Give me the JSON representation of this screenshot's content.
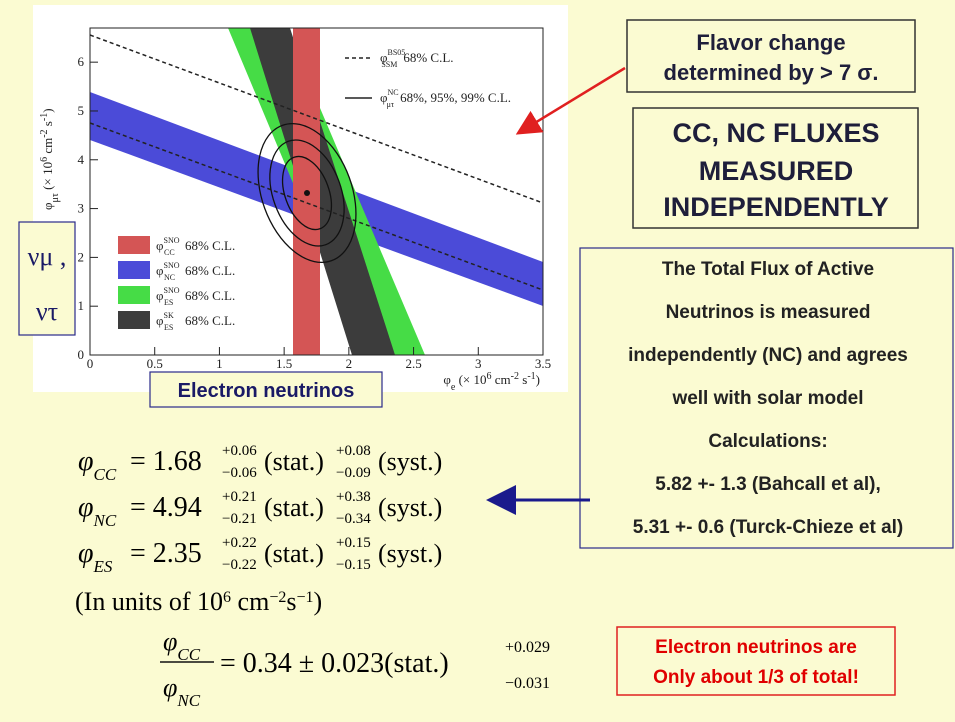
{
  "plot": {
    "xlim": [
      0,
      3.5
    ],
    "ylim": [
      0,
      6.7
    ],
    "xticks": [
      0,
      0.5,
      1,
      1.5,
      2,
      2.5,
      3,
      3.5
    ],
    "yticks": [
      0,
      1,
      2,
      3,
      4,
      5,
      6
    ],
    "x_label_parts": [
      "φ",
      "e",
      " (× 10",
      "6",
      " cm",
      "-2",
      " s",
      "-1",
      ")"
    ],
    "y_label_parts": [
      "φ",
      "μτ",
      " (× 10",
      "6",
      " cm",
      "-2",
      " s",
      "-1",
      ")"
    ],
    "legend_lines": [
      {
        "symbol": "φ",
        "sup": "BS05",
        "sub": "SSM",
        "text": "68% C.L."
      },
      {
        "symbol": "φ",
        "sup": "NC",
        "sub": "μτ",
        "text": "68%, 95%, 99% C.L."
      }
    ],
    "legend_bands": [
      {
        "symbol": "φ",
        "sup": "SNO",
        "sub": "CC",
        "text": "68% C.L.",
        "color": "#d45555"
      },
      {
        "symbol": "φ",
        "sup": "SNO",
        "sub": "NC",
        "text": "68% C.L.",
        "color": "#4b4bd8"
      },
      {
        "symbol": "φ",
        "sup": "SNO",
        "sub": "ES",
        "text": "68% C.L.",
        "color": "#46dc46"
      },
      {
        "symbol": "φ",
        "sup": "SK",
        "sub": "ES",
        "text": "68% C.L.",
        "color": "#3c3c3c"
      }
    ]
  },
  "flavor_box": [
    "Flavor change",
    "determined by > 7 σ."
  ],
  "fluxes_box": [
    "CC, NC FLUXES",
    "MEASURED",
    "INDEPENDENTLY"
  ],
  "nu_labels": [
    "νμ ,",
    "ντ"
  ],
  "electron_label": "Electron neutrinos",
  "total_flux_box": [
    "The Total Flux of Active",
    "Neutrinos is measured",
    "independently (NC) and agrees",
    "well with solar model",
    "Calculations:",
    "5.82 +- 1.3 (Bahcall et al),",
    "5.31 +- 0.6 (Turck-Chieze et al)"
  ],
  "equations": [
    {
      "symbol": "φ",
      "sub": "CC",
      "value": "= 1.68",
      "stat_up": "+0.06",
      "stat_down": "−0.06",
      "stat": "(stat.)",
      "syst_up": "+0.08",
      "syst_down": "−0.09",
      "syst": "(syst.)"
    },
    {
      "symbol": "φ",
      "sub": "NC",
      "value": "= 4.94",
      "stat_up": "+0.21",
      "stat_down": "−0.21",
      "stat": "(stat.)",
      "syst_up": "+0.38",
      "syst_down": "−0.34",
      "syst": "(syst.)"
    },
    {
      "symbol": "φ",
      "sub": "ES",
      "value": "= 2.35",
      "stat_up": "+0.22",
      "stat_down": "−0.22",
      "stat": "(stat.)",
      "syst_up": "+0.15",
      "syst_down": "−0.15",
      "syst": "(syst.)"
    }
  ],
  "units_parts": [
    "(In units of 10",
    "6",
    " cm",
    "−2",
    "s",
    "−1",
    ")"
  ],
  "ratio": {
    "num_symbol": "φ",
    "num_sub": "CC",
    "den_symbol": "φ",
    "den_sub": "NC",
    "value": "= 0.34 ± 0.023(stat.)",
    "up": "+0.029",
    "down": "−0.031"
  },
  "note_box": [
    "Electron neutrinos are",
    "Only about 1/3 of total!"
  ]
}
